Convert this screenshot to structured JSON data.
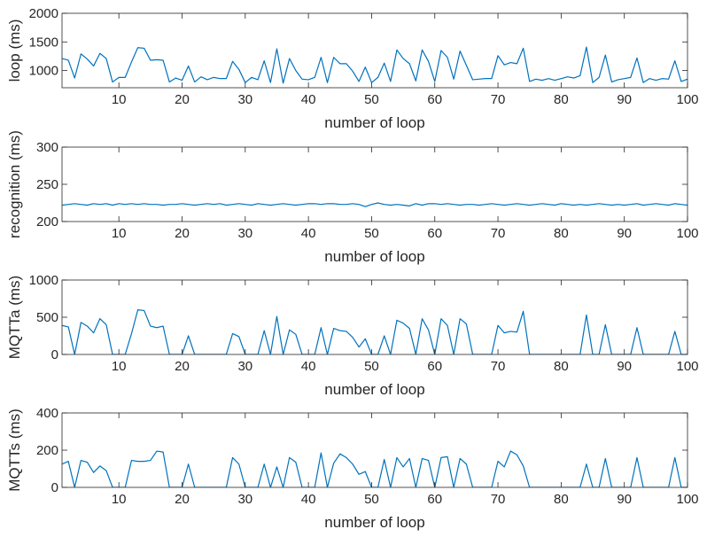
{
  "colors": {
    "line": "#0072BD",
    "axis": "#262626",
    "background": "#ffffff"
  },
  "chart_data": [
    {
      "type": "line",
      "title": "",
      "xlabel": "number of loop",
      "ylabel": "loop (ms)",
      "xlim": [
        1,
        100
      ],
      "ylim": [
        700,
        2000
      ],
      "xticks": [
        10,
        20,
        30,
        40,
        50,
        60,
        70,
        80,
        90,
        100
      ],
      "yticks": [
        1000,
        1500,
        2000
      ],
      "grid": false,
      "x": [
        1,
        2,
        3,
        4,
        5,
        6,
        7,
        8,
        9,
        10,
        11,
        12,
        13,
        14,
        15,
        16,
        17,
        18,
        19,
        20,
        21,
        22,
        23,
        24,
        25,
        26,
        27,
        28,
        29,
        30,
        31,
        32,
        33,
        34,
        35,
        36,
        37,
        38,
        39,
        40,
        41,
        42,
        43,
        44,
        45,
        46,
        47,
        48,
        49,
        50,
        51,
        52,
        53,
        54,
        55,
        56,
        57,
        58,
        59,
        60,
        61,
        62,
        63,
        64,
        65,
        66,
        67,
        68,
        69,
        70,
        71,
        72,
        73,
        74,
        75,
        76,
        77,
        78,
        79,
        80,
        81,
        82,
        83,
        84,
        85,
        86,
        87,
        88,
        89,
        90,
        91,
        92,
        93,
        94,
        95,
        96,
        97,
        98,
        99,
        100
      ],
      "series": [
        {
          "values": [
            1210,
            1180,
            870,
            1290,
            1200,
            1080,
            1300,
            1210,
            800,
            880,
            880,
            1150,
            1400,
            1390,
            1180,
            1190,
            1180,
            800,
            870,
            830,
            1080,
            800,
            890,
            840,
            880,
            860,
            860,
            1160,
            1020,
            790,
            880,
            840,
            1170,
            790,
            1380,
            780,
            1210,
            1000,
            850,
            840,
            880,
            1230,
            790,
            1230,
            1120,
            1120,
            990,
            810,
            1060,
            790,
            880,
            1130,
            810,
            1360,
            1210,
            1120,
            820,
            1360,
            1160,
            810,
            1350,
            1230,
            850,
            1340,
            1090,
            840,
            850,
            860,
            860,
            1260,
            1100,
            1140,
            1120,
            1390,
            810,
            850,
            830,
            860,
            830,
            860,
            890,
            870,
            910,
            1410,
            790,
            880,
            1270,
            800,
            840,
            860,
            880,
            1220,
            790,
            860,
            830,
            860,
            850,
            1170,
            810,
            850
          ]
        }
      ]
    },
    {
      "type": "line",
      "title": "",
      "xlabel": "number of loop",
      "ylabel": "recognition (ms)",
      "xlim": [
        1,
        100
      ],
      "ylim": [
        200,
        300
      ],
      "xticks": [
        10,
        20,
        30,
        40,
        50,
        60,
        70,
        80,
        90,
        100
      ],
      "yticks": [
        200,
        250,
        300
      ],
      "grid": false,
      "x": [
        1,
        2,
        3,
        4,
        5,
        6,
        7,
        8,
        9,
        10,
        11,
        12,
        13,
        14,
        15,
        16,
        17,
        18,
        19,
        20,
        21,
        22,
        23,
        24,
        25,
        26,
        27,
        28,
        29,
        30,
        31,
        32,
        33,
        34,
        35,
        36,
        37,
        38,
        39,
        40,
        41,
        42,
        43,
        44,
        45,
        46,
        47,
        48,
        49,
        50,
        51,
        52,
        53,
        54,
        55,
        56,
        57,
        58,
        59,
        60,
        61,
        62,
        63,
        64,
        65,
        66,
        67,
        68,
        69,
        70,
        71,
        72,
        73,
        74,
        75,
        76,
        77,
        78,
        79,
        80,
        81,
        82,
        83,
        84,
        85,
        86,
        87,
        88,
        89,
        90,
        91,
        92,
        93,
        94,
        95,
        96,
        97,
        98,
        99,
        100
      ],
      "series": [
        {
          "values": [
            222,
            223,
            224,
            223,
            222,
            224,
            223,
            224,
            222,
            224,
            223,
            224,
            223,
            224,
            223,
            223,
            222,
            223,
            223,
            224,
            223,
            222,
            223,
            224,
            223,
            224,
            222,
            223,
            224,
            223,
            222,
            224,
            223,
            222,
            223,
            224,
            223,
            222,
            223,
            224,
            224,
            223,
            224,
            224,
            223,
            223,
            224,
            223,
            220,
            223,
            225,
            223,
            222,
            223,
            222,
            221,
            224,
            222,
            224,
            224,
            223,
            224,
            223,
            222,
            223,
            223,
            222,
            223,
            224,
            223,
            222,
            223,
            224,
            223,
            222,
            223,
            224,
            223,
            222,
            224,
            223,
            222,
            223,
            222,
            223,
            224,
            223,
            222,
            223,
            222,
            223,
            224,
            222,
            223,
            224,
            223,
            222,
            224,
            223,
            222
          ]
        }
      ]
    },
    {
      "type": "line",
      "title": "",
      "xlabel": "number of loop",
      "ylabel": "MQTTa (ms)",
      "xlim": [
        1,
        100
      ],
      "ylim": [
        0,
        1000
      ],
      "xticks": [
        10,
        20,
        30,
        40,
        50,
        60,
        70,
        80,
        90,
        100
      ],
      "yticks": [
        0,
        500,
        1000
      ],
      "grid": false,
      "x": [
        1,
        2,
        3,
        4,
        5,
        6,
        7,
        8,
        9,
        10,
        11,
        12,
        13,
        14,
        15,
        16,
        17,
        18,
        19,
        20,
        21,
        22,
        23,
        24,
        25,
        26,
        27,
        28,
        29,
        30,
        31,
        32,
        33,
        34,
        35,
        36,
        37,
        38,
        39,
        40,
        41,
        42,
        43,
        44,
        45,
        46,
        47,
        48,
        49,
        50,
        51,
        52,
        53,
        54,
        55,
        56,
        57,
        58,
        59,
        60,
        61,
        62,
        63,
        64,
        65,
        66,
        67,
        68,
        69,
        70,
        71,
        72,
        73,
        74,
        75,
        76,
        77,
        78,
        79,
        80,
        81,
        82,
        83,
        84,
        85,
        86,
        87,
        88,
        89,
        90,
        91,
        92,
        93,
        94,
        95,
        96,
        97,
        98,
        99,
        100
      ],
      "series": [
        {
          "values": [
            390,
            370,
            0,
            430,
            380,
            290,
            480,
            400,
            0,
            0,
            0,
            280,
            600,
            590,
            380,
            360,
            380,
            0,
            0,
            0,
            250,
            0,
            0,
            0,
            0,
            0,
            0,
            280,
            240,
            0,
            0,
            0,
            320,
            0,
            510,
            0,
            330,
            270,
            0,
            0,
            0,
            360,
            0,
            350,
            320,
            310,
            230,
            100,
            210,
            0,
            0,
            250,
            0,
            460,
            420,
            350,
            0,
            480,
            330,
            0,
            480,
            390,
            0,
            480,
            410,
            0,
            0,
            0,
            0,
            390,
            290,
            310,
            300,
            580,
            0,
            0,
            0,
            0,
            0,
            0,
            0,
            0,
            0,
            530,
            0,
            0,
            400,
            0,
            0,
            0,
            0,
            360,
            0,
            0,
            0,
            0,
            0,
            310,
            0,
            0
          ]
        }
      ]
    },
    {
      "type": "line",
      "title": "",
      "xlabel": "number of loop",
      "ylabel": "MQTTs (ms)",
      "xlim": [
        1,
        100
      ],
      "ylim": [
        0,
        400
      ],
      "xticks": [
        10,
        20,
        30,
        40,
        50,
        60,
        70,
        80,
        90,
        100
      ],
      "yticks": [
        0,
        200,
        400
      ],
      "grid": false,
      "x": [
        1,
        2,
        3,
        4,
        5,
        6,
        7,
        8,
        9,
        10,
        11,
        12,
        13,
        14,
        15,
        16,
        17,
        18,
        19,
        20,
        21,
        22,
        23,
        24,
        25,
        26,
        27,
        28,
        29,
        30,
        31,
        32,
        33,
        34,
        35,
        36,
        37,
        38,
        39,
        40,
        41,
        42,
        43,
        44,
        45,
        46,
        47,
        48,
        49,
        50,
        51,
        52,
        53,
        54,
        55,
        56,
        57,
        58,
        59,
        60,
        61,
        62,
        63,
        64,
        65,
        66,
        67,
        68,
        69,
        70,
        71,
        72,
        73,
        74,
        75,
        76,
        77,
        78,
        79,
        80,
        81,
        82,
        83,
        84,
        85,
        86,
        87,
        88,
        89,
        90,
        91,
        92,
        93,
        94,
        95,
        96,
        97,
        98,
        99,
        100
      ],
      "series": [
        {
          "values": [
            125,
            140,
            0,
            145,
            135,
            80,
            115,
            90,
            0,
            0,
            0,
            145,
            140,
            140,
            145,
            195,
            190,
            0,
            0,
            0,
            125,
            0,
            0,
            0,
            0,
            0,
            0,
            160,
            125,
            0,
            0,
            0,
            125,
            0,
            110,
            0,
            160,
            135,
            0,
            0,
            0,
            185,
            0,
            130,
            180,
            160,
            125,
            70,
            85,
            0,
            0,
            150,
            0,
            160,
            110,
            155,
            0,
            155,
            145,
            0,
            160,
            165,
            0,
            155,
            125,
            0,
            0,
            0,
            0,
            140,
            110,
            195,
            175,
            115,
            0,
            0,
            0,
            0,
            0,
            0,
            0,
            0,
            0,
            125,
            0,
            0,
            155,
            0,
            0,
            0,
            0,
            160,
            0,
            0,
            0,
            0,
            0,
            160,
            0,
            0
          ]
        }
      ]
    }
  ]
}
